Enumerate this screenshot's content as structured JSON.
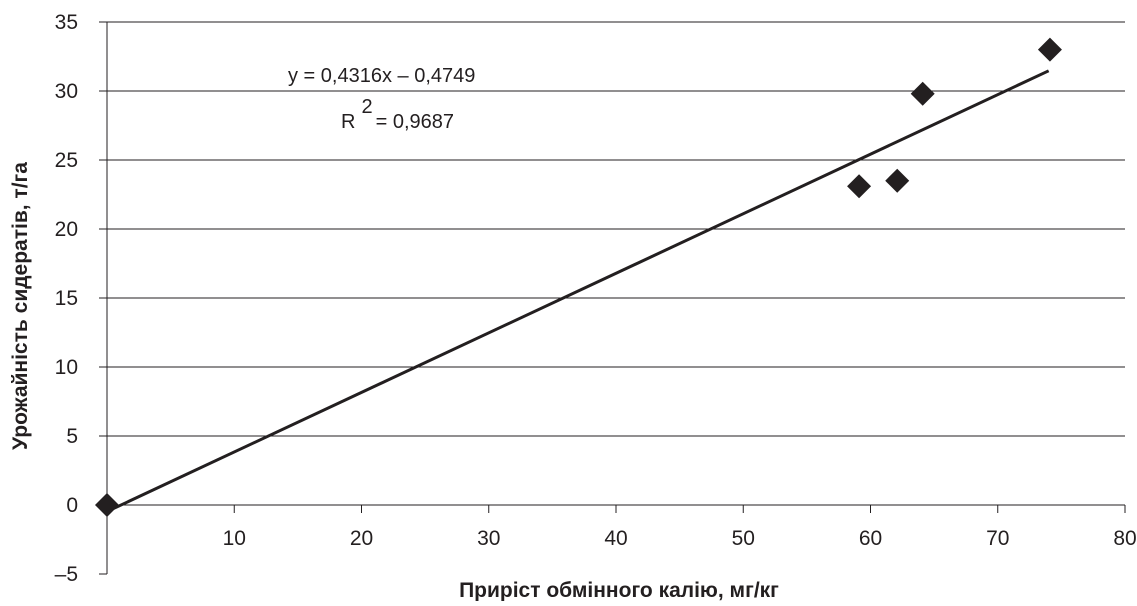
{
  "chart_data": {
    "type": "scatter",
    "xlabel": "Приріст обмінного калію, мг/кг",
    "ylabel": "Урожайність сидератів, т/га",
    "xlim": [
      0,
      80
    ],
    "ylim": [
      -5,
      35
    ],
    "x_ticks": [
      "10",
      "20",
      "30",
      "40",
      "50",
      "60",
      "70",
      "80"
    ],
    "y_ticks": [
      "–5",
      "0",
      "5",
      "10",
      "15",
      "20",
      "25",
      "30",
      "35"
    ],
    "grid": "horizontal",
    "marker": "diamond",
    "series": [
      {
        "points": [
          {
            "x": 0,
            "y": 0
          },
          {
            "x": 59.1,
            "y": 23.1
          },
          {
            "x": 62.1,
            "y": 23.5
          },
          {
            "x": 64.1,
            "y": 29.8
          },
          {
            "x": 74.1,
            "y": 33.0
          }
        ]
      }
    ],
    "trendline": {
      "slope": 0.4316,
      "intercept": -0.4749,
      "x_range": [
        0.5,
        74
      ],
      "equation_label": "y = 0,4316x – 0,4749",
      "r2_prefix": "R",
      "r2_superscript": "2",
      "r2_value": "= 0,9687"
    },
    "colors": {
      "marker": "#231f20",
      "line": "#231f20",
      "grid": "#231f20",
      "text": "#231f20"
    }
  }
}
